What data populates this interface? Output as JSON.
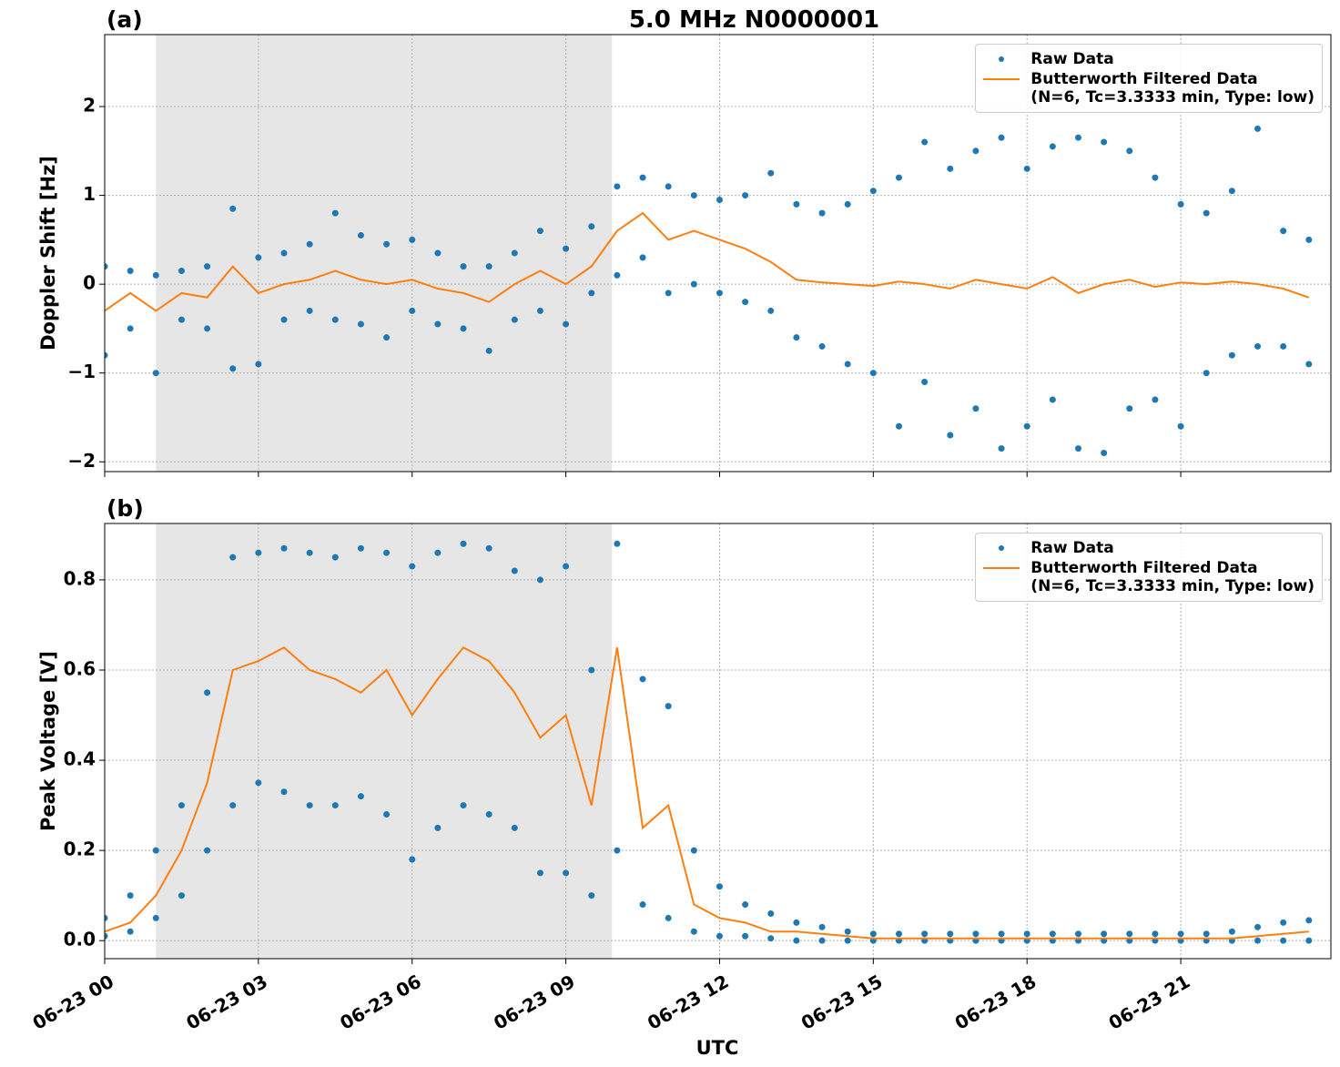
{
  "chart_data": [
    {
      "type": "line",
      "panel_label": "(a)",
      "title": "5.0 MHz N0000001",
      "ylabel": "Doppler Shift [Hz]",
      "xlim": [
        0,
        23.93
      ],
      "ylim": [
        -2.11,
        2.81
      ],
      "yticks": [
        {
          "value": -2,
          "label": "−2"
        },
        {
          "value": -1,
          "label": "−1"
        },
        0,
        1,
        2
      ],
      "grid": true,
      "shaded_span": [
        1.0,
        9.9
      ],
      "legend": "upper right",
      "series": [
        {
          "name": "Raw Data",
          "color": "#1f77b4",
          "marker": "dot",
          "x": [
            0,
            0,
            0.5,
            0.5,
            1,
            1,
            1.5,
            1.5,
            2,
            2,
            2.5,
            2.5,
            3,
            3,
            3.5,
            3.5,
            4,
            4,
            4.5,
            4.5,
            5,
            5,
            5.5,
            5.5,
            6,
            6,
            6.5,
            6.5,
            7,
            7,
            7.5,
            7.5,
            8,
            8,
            8.5,
            8.5,
            9,
            9,
            9.5,
            9.5,
            10,
            10,
            10.5,
            10.5,
            11,
            11,
            11.5,
            11.5,
            12,
            12,
            12.5,
            12.5,
            13,
            13,
            13.5,
            13.5,
            14,
            14,
            14.5,
            14.5,
            15,
            15,
            15.5,
            15.5,
            16,
            16,
            16.5,
            16.5,
            17,
            17,
            17.5,
            17.5,
            18,
            18,
            18.5,
            18.5,
            19,
            19,
            19.5,
            19.5,
            20,
            20,
            20.5,
            20.5,
            21,
            21,
            21.5,
            21.5,
            22,
            22,
            22.5,
            22.5,
            23,
            23,
            23.5,
            23.5
          ],
          "values": [
            0.2,
            -0.8,
            0.15,
            -0.5,
            0.1,
            -1.0,
            0.15,
            -0.4,
            0.2,
            -0.5,
            0.85,
            -0.95,
            0.3,
            -0.9,
            0.35,
            -0.4,
            0.45,
            -0.3,
            0.8,
            -0.4,
            0.55,
            -0.45,
            0.45,
            -0.6,
            0.5,
            -0.3,
            0.35,
            -0.45,
            0.2,
            -0.5,
            0.2,
            -0.75,
            0.35,
            -0.4,
            0.6,
            -0.3,
            0.4,
            -0.45,
            0.65,
            -0.1,
            1.1,
            0.1,
            1.2,
            0.3,
            1.1,
            -0.1,
            1.0,
            0.0,
            0.95,
            -0.1,
            1.0,
            -0.2,
            1.25,
            -0.3,
            0.9,
            -0.6,
            0.8,
            -0.7,
            0.9,
            -0.9,
            1.05,
            -1.0,
            1.2,
            -1.6,
            1.6,
            -1.1,
            1.3,
            -1.7,
            1.5,
            -1.4,
            1.65,
            -1.85,
            1.3,
            -1.6,
            1.55,
            -1.3,
            1.65,
            -1.85,
            1.6,
            -1.9,
            1.5,
            -1.4,
            1.2,
            -1.3,
            0.9,
            -1.6,
            0.8,
            -1.0,
            1.05,
            -0.8,
            1.75,
            -0.7,
            0.6,
            -0.7,
            0.5,
            -0.9
          ]
        },
        {
          "name": "Butterworth Filtered Data\n(N=6, Tc=3.3333 min, Type: low)",
          "color": "#ff7f0e",
          "x": [
            0,
            0.5,
            1,
            1.5,
            2,
            2.5,
            3,
            3.5,
            4,
            4.5,
            5,
            5.5,
            6,
            6.5,
            7,
            7.5,
            8,
            8.5,
            9,
            9.5,
            10,
            10.5,
            11,
            11.5,
            12,
            12.5,
            13,
            13.5,
            14,
            14.5,
            15,
            15.5,
            16,
            16.5,
            17,
            17.5,
            18,
            18.5,
            19,
            19.5,
            20,
            20.5,
            21,
            21.5,
            22,
            22.5,
            23,
            23.5
          ],
          "values": [
            -0.3,
            -0.1,
            -0.3,
            -0.1,
            -0.15,
            0.2,
            -0.1,
            0.0,
            0.05,
            0.15,
            0.05,
            0.0,
            0.05,
            -0.05,
            -0.1,
            -0.2,
            0.0,
            0.15,
            0.0,
            0.2,
            0.6,
            0.8,
            0.5,
            0.6,
            0.5,
            0.4,
            0.25,
            0.05,
            0.02,
            0.0,
            -0.02,
            0.03,
            0.0,
            -0.05,
            0.05,
            0.0,
            -0.05,
            0.08,
            -0.1,
            0.0,
            0.05,
            -0.03,
            0.02,
            0.0,
            0.03,
            0.0,
            -0.05,
            -0.15
          ]
        }
      ]
    },
    {
      "type": "line",
      "panel_label": "(b)",
      "ylabel": "Peak Voltage [V]",
      "xlabel": "UTC",
      "xlim": [
        0,
        23.93
      ],
      "ylim": [
        -0.04,
        0.925
      ],
      "xticks": [
        {
          "value": 0,
          "label": "06-23 00"
        },
        {
          "value": 3,
          "label": "06-23 03"
        },
        {
          "value": 6,
          "label": "06-23 06"
        },
        {
          "value": 9,
          "label": "06-23 09"
        },
        {
          "value": 12,
          "label": "06-23 12"
        },
        {
          "value": 15,
          "label": "06-23 15"
        },
        {
          "value": 18,
          "label": "06-23 18"
        },
        {
          "value": 21,
          "label": "06-23 21"
        }
      ],
      "yticks": [
        {
          "value": 0,
          "label": "0.0"
        },
        0.2,
        0.4,
        0.6,
        0.8
      ],
      "grid": true,
      "shaded_span": [
        1.0,
        9.9
      ],
      "legend": "upper right",
      "series": [
        {
          "name": "Raw Data",
          "color": "#1f77b4",
          "marker": "dot",
          "x": [
            0,
            0,
            0.5,
            0.5,
            1,
            1,
            1.5,
            1.5,
            2,
            2,
            2.5,
            2.5,
            3,
            3,
            3.5,
            3.5,
            4,
            4,
            4.5,
            4.5,
            5,
            5,
            5.5,
            5.5,
            6,
            6,
            6.5,
            6.5,
            7,
            7,
            7.5,
            7.5,
            8,
            8,
            8.5,
            8.5,
            9,
            9,
            9.5,
            9.5,
            10,
            10,
            10.5,
            10.5,
            11,
            11,
            11.5,
            11.5,
            12,
            12,
            12.5,
            12.5,
            13,
            13,
            13.5,
            13.5,
            14,
            14,
            14.5,
            14.5,
            15,
            15,
            15.5,
            15.5,
            16,
            16,
            16.5,
            16.5,
            17,
            17,
            17.5,
            17.5,
            18,
            18,
            18.5,
            18.5,
            19,
            19,
            19.5,
            19.5,
            20,
            20,
            20.5,
            20.5,
            21,
            21,
            21.5,
            21.5,
            22,
            22,
            22.5,
            22.5,
            23,
            23,
            23.5,
            23.5
          ],
          "values": [
            0.05,
            0.01,
            0.1,
            0.02,
            0.2,
            0.05,
            0.3,
            0.1,
            0.55,
            0.2,
            0.85,
            0.3,
            0.86,
            0.35,
            0.87,
            0.33,
            0.86,
            0.3,
            0.85,
            0.3,
            0.87,
            0.32,
            0.86,
            0.28,
            0.83,
            0.18,
            0.86,
            0.25,
            0.88,
            0.3,
            0.87,
            0.28,
            0.82,
            0.25,
            0.8,
            0.15,
            0.83,
            0.15,
            0.6,
            0.1,
            0.88,
            0.2,
            0.58,
            0.08,
            0.52,
            0.05,
            0.2,
            0.02,
            0.12,
            0.01,
            0.08,
            0.01,
            0.06,
            0.005,
            0.04,
            0.0,
            0.03,
            0.0,
            0.02,
            0.0,
            0.015,
            0.0,
            0.015,
            0.0,
            0.015,
            0.0,
            0.015,
            0.0,
            0.015,
            0.0,
            0.015,
            0.0,
            0.015,
            0.0,
            0.015,
            0.0,
            0.015,
            0.0,
            0.015,
            0.0,
            0.015,
            0.0,
            0.015,
            0.0,
            0.015,
            0.0,
            0.015,
            0.0,
            0.02,
            0.0,
            0.03,
            0.0,
            0.04,
            0.0,
            0.045,
            0.0
          ]
        },
        {
          "name": "Butterworth Filtered Data\n(N=6, Tc=3.3333 min, Type: low)",
          "color": "#ff7f0e",
          "x": [
            0,
            0.5,
            1,
            1.5,
            2,
            2.5,
            3,
            3.5,
            4,
            4.5,
            5,
            5.5,
            6,
            6.5,
            7,
            7.5,
            8,
            8.5,
            9,
            9.5,
            10,
            10.5,
            11,
            11.5,
            12,
            12.5,
            13,
            13.5,
            14,
            14.5,
            15,
            15.5,
            16,
            16.5,
            17,
            17.5,
            18,
            18.5,
            19,
            19.5,
            20,
            20.5,
            21,
            21.5,
            22,
            22.5,
            23,
            23.5
          ],
          "values": [
            0.02,
            0.04,
            0.1,
            0.2,
            0.35,
            0.6,
            0.62,
            0.65,
            0.6,
            0.58,
            0.55,
            0.6,
            0.5,
            0.58,
            0.65,
            0.62,
            0.55,
            0.45,
            0.5,
            0.3,
            0.65,
            0.25,
            0.3,
            0.08,
            0.05,
            0.04,
            0.02,
            0.02,
            0.015,
            0.01,
            0.005,
            0.005,
            0.005,
            0.005,
            0.005,
            0.005,
            0.005,
            0.005,
            0.005,
            0.005,
            0.005,
            0.005,
            0.005,
            0.005,
            0.005,
            0.01,
            0.015,
            0.02
          ]
        }
      ]
    }
  ]
}
